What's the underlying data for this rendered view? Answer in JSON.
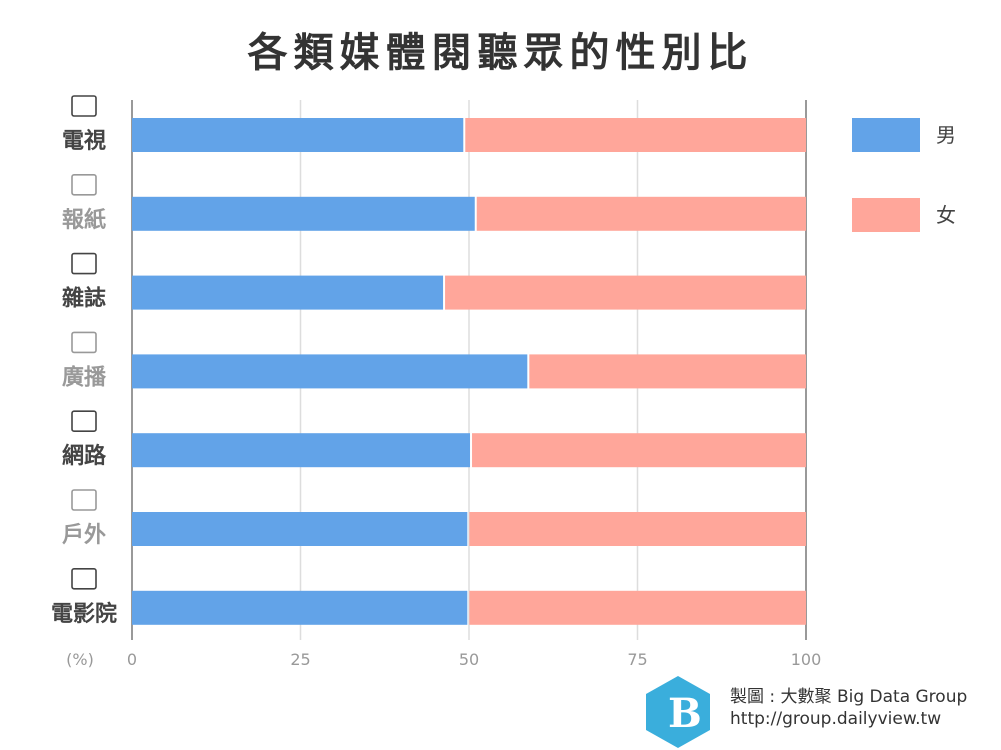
{
  "chart_data": {
    "type": "bar",
    "orientation": "horizontal",
    "stacked": true,
    "title": "各類媒體閱聽眾的性別比",
    "categories": [
      "電視",
      "報紙",
      "雜誌",
      "廣播",
      "網路",
      "戶外",
      "電影院"
    ],
    "category_icons": [
      "tv-icon",
      "newspaper-icon",
      "magazine-icon",
      "radio-icon",
      "globe-icon",
      "outdoor-icon",
      "movie-camera-icon"
    ],
    "series": [
      {
        "name": "男",
        "color": "#62A3E8",
        "values": [
          49.3,
          51.0,
          46.3,
          58.8,
          50.3,
          49.9,
          49.9
        ]
      },
      {
        "name": "女",
        "color": "#FFA69A",
        "values": [
          50.7,
          49.0,
          53.7,
          41.2,
          49.7,
          50.1,
          50.1
        ]
      }
    ],
    "xlabel": "(%)",
    "xlim": [
      0,
      100
    ],
    "xticks": [
      "0",
      "25",
      "50",
      "75",
      "100"
    ],
    "grid": true,
    "legend": "right"
  },
  "credit": {
    "line1": "製圖 : 大數聚 Big Data Group",
    "line2": "http://group.dailyview.tw"
  }
}
